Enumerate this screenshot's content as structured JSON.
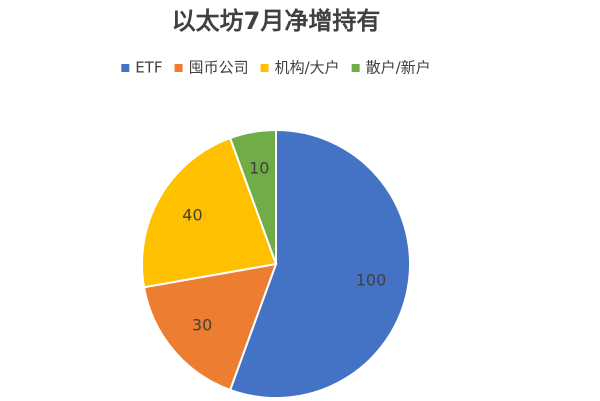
{
  "chart_data": {
    "type": "pie",
    "title": "以太坊7月净增持有",
    "categories": [
      "ETF",
      "囤币公司",
      "机构/大户",
      "散户/新户"
    ],
    "values": [
      100,
      30,
      40,
      10
    ],
    "colors": [
      "#4472c4",
      "#ed7d31",
      "#ffc000",
      "#70ad47"
    ],
    "legend": "top"
  }
}
